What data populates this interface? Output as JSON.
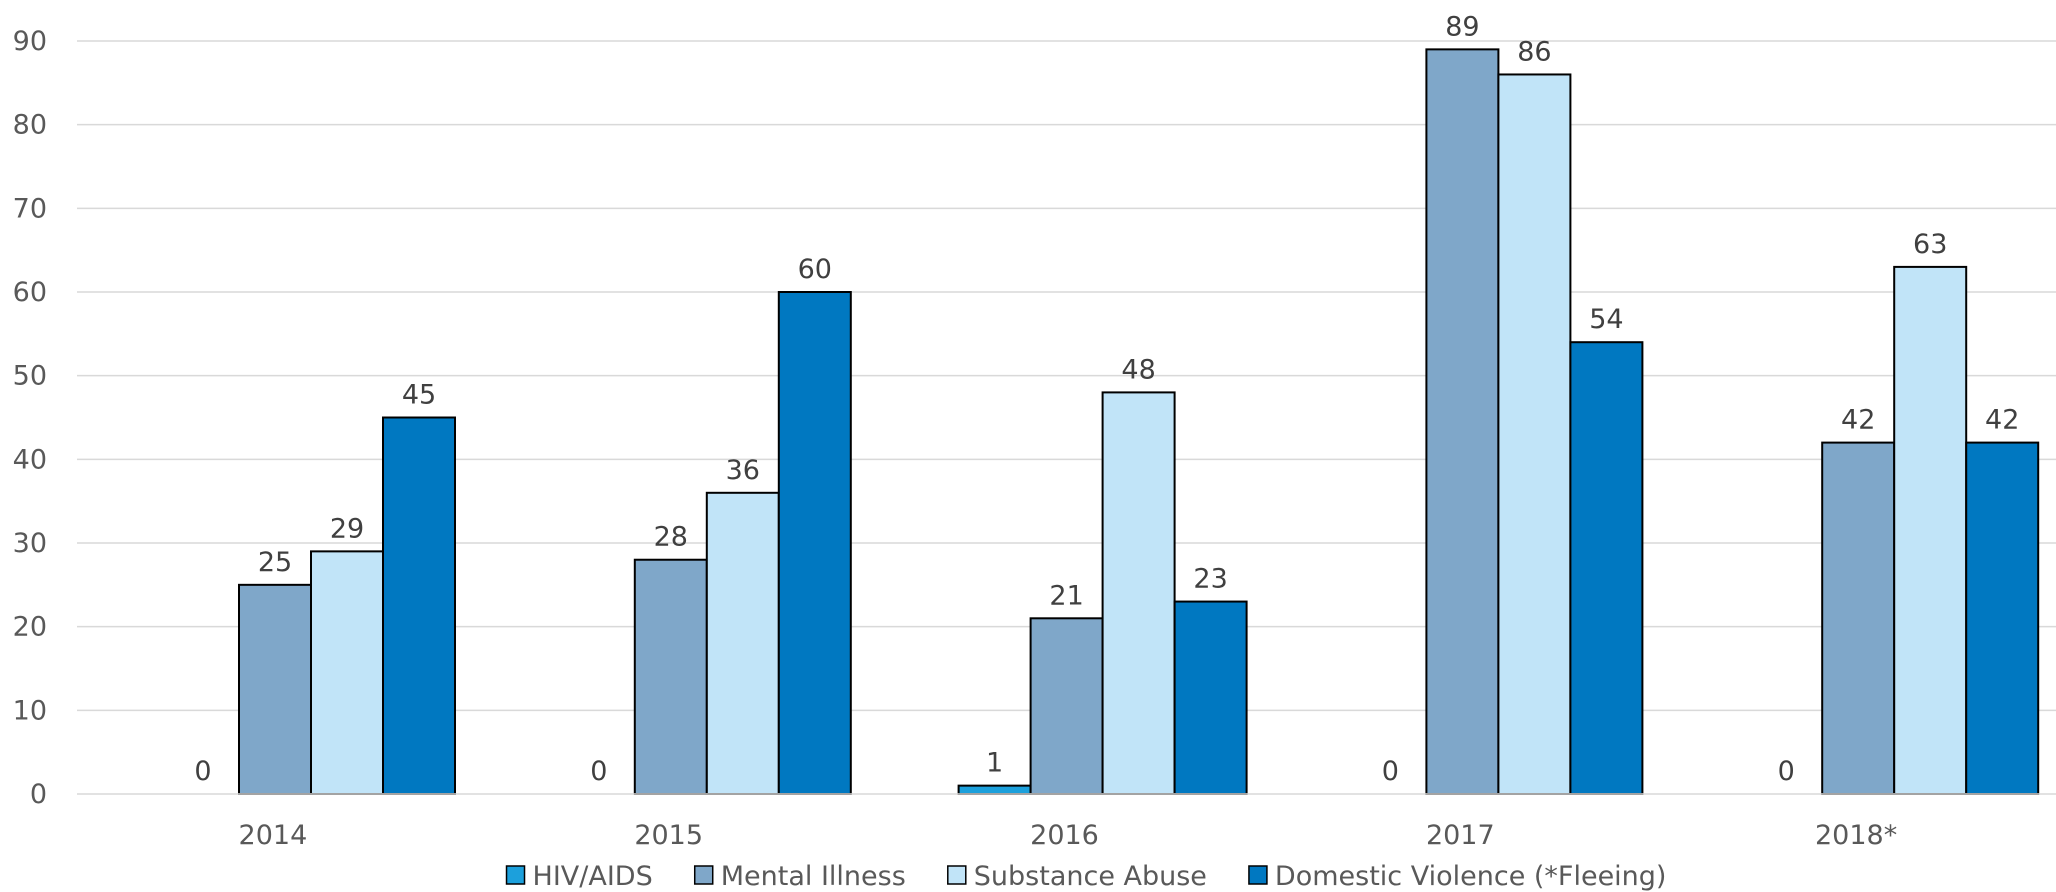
{
  "chart_data": {
    "type": "bar",
    "title": "",
    "xlabel": "",
    "ylabel": "",
    "categories": [
      "2014",
      "2015",
      "2016",
      "2017",
      "2018*"
    ],
    "ylim": [
      0,
      90
    ],
    "yticks": [
      0,
      10,
      20,
      30,
      40,
      50,
      60,
      70,
      80,
      90
    ],
    "grid": true,
    "legend_position": "bottom",
    "series": [
      {
        "name": "HIV/AIDS",
        "color": "#1ca0dc",
        "values": [
          0,
          0,
          1,
          0,
          0
        ]
      },
      {
        "name": "Mental Illness",
        "color": "#7fa7c9",
        "values": [
          25,
          28,
          21,
          89,
          42
        ]
      },
      {
        "name": "Substance Abuse",
        "color": "#c1e4f8",
        "values": [
          29,
          36,
          48,
          86,
          63
        ]
      },
      {
        "name": "Domestic Violence (*Fleeing)",
        "color": "#0078c1",
        "values": [
          45,
          60,
          23,
          54,
          42
        ]
      }
    ]
  }
}
